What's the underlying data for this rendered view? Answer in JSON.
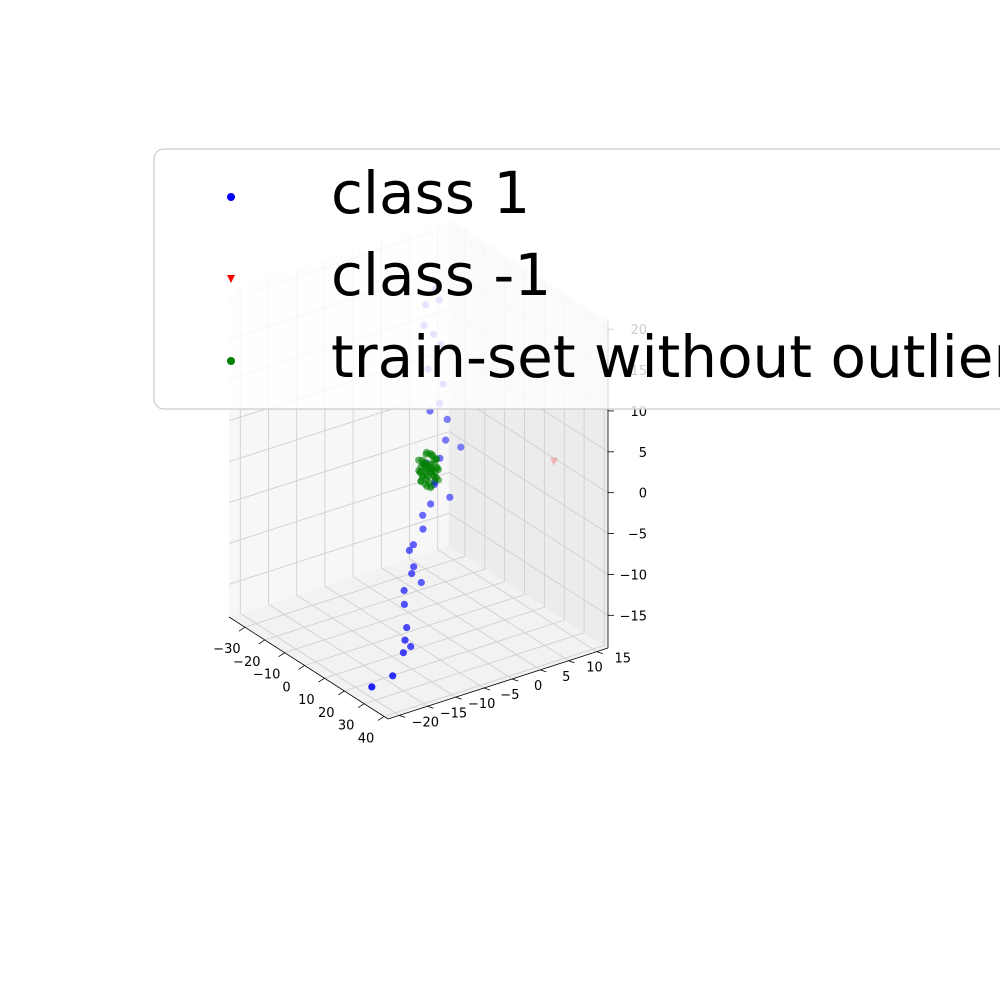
{
  "chart_data": {
    "type": "scatter",
    "title": "",
    "xlabel": "",
    "ylabel": "",
    "zlabel": "",
    "projection": "3d",
    "grid": true,
    "legend_position": "upper-left (overlapping plot)",
    "xlim": [
      -38,
      42
    ],
    "ylim": [
      -22,
      17
    ],
    "zlim": [
      -19,
      21
    ],
    "x_ticks": [
      -30,
      -20,
      -10,
      0,
      10,
      20,
      30,
      40
    ],
    "y_ticks": [
      -20,
      -15,
      -10,
      -5,
      0,
      5,
      10,
      15
    ],
    "z_ticks": [
      -15,
      -10,
      -5,
      0,
      5,
      10,
      15,
      20
    ],
    "x_tick_labels": [
      "−30",
      "−20",
      "−10",
      "0",
      "10",
      "20",
      "30",
      "40"
    ],
    "y_tick_labels": [
      "−20",
      "−15",
      "−10",
      "−5",
      "0",
      "5",
      "10",
      "15"
    ],
    "z_tick_labels": [
      "−15",
      "−10",
      "−5",
      "0",
      "5",
      "10",
      "15",
      "20"
    ],
    "series": [
      {
        "name": "class 1",
        "marker": "circle",
        "color": "#0000ff",
        "points": [
          [
            -8,
            4,
            20
          ],
          [
            -6,
            4,
            19
          ],
          [
            -10,
            3,
            18
          ],
          [
            -8,
            2,
            16
          ],
          [
            -6,
            3,
            15
          ],
          [
            -8,
            5,
            13
          ],
          [
            -6,
            2,
            11
          ],
          [
            -4,
            4,
            9
          ],
          [
            -3,
            3,
            7
          ],
          [
            -5,
            2,
            6
          ],
          [
            -2,
            4,
            5
          ],
          [
            0,
            3,
            3
          ],
          [
            2,
            5,
            2
          ],
          [
            0,
            2,
            1
          ],
          [
            -4,
            1,
            0
          ],
          [
            3,
            0,
            -1
          ],
          [
            0,
            1,
            -2
          ],
          [
            5,
            2,
            -3
          ],
          [
            1,
            0,
            -4
          ],
          [
            -3,
            0,
            -6
          ],
          [
            0,
            -1,
            -7
          ],
          [
            -2,
            -2,
            -9
          ],
          [
            -4,
            -2,
            -10
          ],
          [
            1,
            -3,
            -11
          ],
          [
            0,
            -3,
            -12
          ],
          [
            2,
            -2,
            -13
          ],
          [
            -1,
            -4,
            -14
          ],
          [
            2,
            -5,
            -15
          ],
          [
            6,
            -6,
            -17
          ],
          [
            8,
            -7,
            -18
          ],
          [
            8,
            -6,
            -19
          ],
          [
            10,
            -8,
            -19
          ],
          [
            16,
            -12,
            -20
          ],
          [
            14,
            -15,
            -21
          ]
        ]
      },
      {
        "name": "class -1",
        "marker": "triangle_down",
        "color": "#ff0000",
        "points": [
          [
            12,
            18,
            -1
          ]
        ]
      },
      {
        "name": "train-set without outliers",
        "marker": "circle",
        "color": "#008000",
        "points": [
          [
            0,
            1,
            1
          ],
          [
            1,
            0,
            0.5
          ],
          [
            -1,
            0,
            0
          ],
          [
            0,
            -1,
            -0.5
          ],
          [
            1,
            1,
            -1
          ],
          [
            -1,
            1,
            1.5
          ],
          [
            0,
            0,
            -1.5
          ],
          [
            1,
            -1,
            1
          ],
          [
            -1,
            -1,
            0.5
          ],
          [
            0.5,
            0.5,
            0
          ],
          [
            -0.5,
            0.5,
            -0.5
          ],
          [
            0.5,
            -0.5,
            -1
          ],
          [
            -0.5,
            -0.5,
            1
          ],
          [
            1.5,
            0,
            0
          ],
          [
            -1.5,
            0,
            0
          ],
          [
            0,
            1.5,
            0
          ],
          [
            0,
            -1.5,
            0
          ],
          [
            1,
            0,
            -2
          ],
          [
            -1,
            0,
            2
          ],
          [
            0.8,
            0.8,
            0.8
          ],
          [
            -0.8,
            -0.8,
            -0.8
          ],
          [
            0.8,
            -0.8,
            0.2
          ],
          [
            -0.8,
            0.8,
            -0.2
          ],
          [
            1.2,
            0.4,
            -0.6
          ],
          [
            -1.2,
            -0.4,
            0.6
          ],
          [
            0.4,
            1.2,
            1.2
          ],
          [
            -0.4,
            -1.2,
            -1.2
          ],
          [
            0.2,
            0.2,
            2
          ],
          [
            -0.2,
            -0.2,
            -2
          ],
          [
            1.6,
            0.8,
            1.4
          ],
          [
            -1.6,
            -0.8,
            -1.4
          ],
          [
            0.6,
            -1.4,
            1.6
          ],
          [
            -0.6,
            1.4,
            -1.6
          ],
          [
            1.4,
            -0.6,
            -0.4
          ],
          [
            -1.4,
            0.6,
            0.4
          ],
          [
            0.3,
            0.9,
            -0.9
          ],
          [
            -0.3,
            -0.9,
            0.9
          ],
          [
            1.1,
            1.1,
            0.1
          ],
          [
            -1.1,
            -1.1,
            -0.1
          ],
          [
            0.9,
            0.3,
            1.8
          ],
          [
            -0.9,
            -0.3,
            -1.8
          ],
          [
            1.7,
            -0.2,
            0.9
          ],
          [
            -1.7,
            0.2,
            -0.9
          ],
          [
            0.1,
            1.7,
            -0.3
          ],
          [
            -0.1,
            -1.7,
            0.3
          ],
          [
            1.3,
            1.3,
            -1.3
          ],
          [
            -1.3,
            -1.3,
            1.3
          ],
          [
            0.7,
            -0.7,
            2.2
          ],
          [
            -0.7,
            0.7,
            -2.2
          ],
          [
            1.9,
            0.5,
            -0.1
          ]
        ]
      }
    ]
  },
  "legend": {
    "items": [
      {
        "label": "class 1",
        "color": "#0000ff",
        "marker": "circle"
      },
      {
        "label": "class -1",
        "color": "#ff0000",
        "marker": "triangle_down"
      },
      {
        "label": "train-set without outliers",
        "color": "#008000",
        "marker": "circle"
      }
    ]
  }
}
